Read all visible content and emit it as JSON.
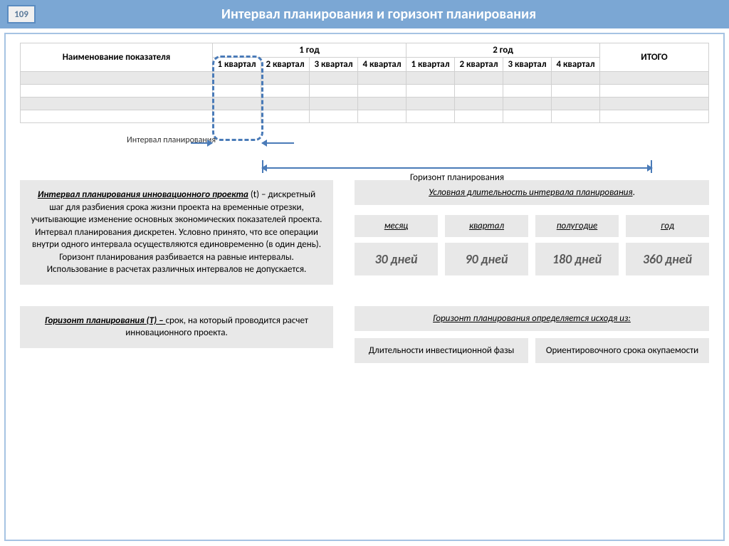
{
  "pageNumber": "109",
  "title": "Интервал планирования и горизонт планирования",
  "table": {
    "nameHeader": "Наименование показателя",
    "year1": "1 год",
    "year2": "2 год",
    "q1": "1 квартал",
    "q2": "2 квартал",
    "q3": "3 квартал",
    "q4": "4 квартал",
    "q5": "1 квартал",
    "q6": "2 квартал",
    "q7": "3 квартал",
    "q8": "4 квартал",
    "total": "ИТОГО"
  },
  "intervalLabel": "Интервал планирования",
  "horizonLabel": "Горизонт планирования",
  "def1Bold": "Интервал планирования инновационного проекта",
  "def1Text": " (t) – дискретный шаг для разбиения срока жизни проекта на временные отрезки, учитывающие изменение основных экономических показателей проекта.",
  "def1P2": "Интервал планирования дискретен. Условно принято, что все операции внутри одного интервала осуществляются единовременно (в один день).",
  "def1P3": "Горизонт планирования разбивается на равные интервалы. Использование в расчетах различных интервалов не допускается.",
  "durTitle": "Условная длительность интервала планирования",
  "durations": [
    {
      "label": "месяц",
      "value": "30 дней"
    },
    {
      "label": "квартал",
      "value": "90 дней"
    },
    {
      "label": "полугодие",
      "value": "180 дней"
    },
    {
      "label": "год",
      "value": "360 дней"
    }
  ],
  "def2Bold": "Горизонт планирования (T) – ",
  "def2Text": "срок, на который проводится расчет инновационного проекта.",
  "factorsTitle": "Горизонт планирования определяется исходя из:",
  "factor1": "Длительности инвестиционной фазы",
  "factor2": "Ориентировочного срока окупаемости",
  "colors": {
    "headerBg": "#7ba7d4",
    "border": "#a6c3e3",
    "dashed": "#4a7bb8",
    "grayBox": "#e8e8e8"
  }
}
